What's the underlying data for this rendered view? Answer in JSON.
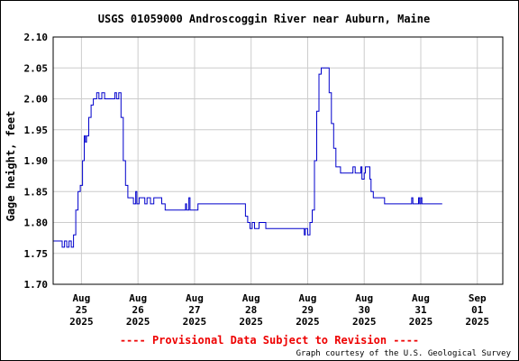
{
  "chart_data": {
    "type": "line",
    "title": "USGS 01059000 Androscoggin River near Auburn, Maine",
    "ylabel": "Gage height, feet",
    "xlabel": "",
    "ylim": [
      1.7,
      2.1
    ],
    "yticks": [
      "2.10",
      "2.05",
      "2.00",
      "1.95",
      "1.90",
      "1.85",
      "1.80",
      "1.75",
      "1.70"
    ],
    "xlim": [
      0,
      7.95
    ],
    "xticks": [
      {
        "x": 0.5,
        "lines": [
          "Aug",
          "25",
          "2025"
        ]
      },
      {
        "x": 1.5,
        "lines": [
          "Aug",
          "26",
          "2025"
        ]
      },
      {
        "x": 2.5,
        "lines": [
          "Aug",
          "27",
          "2025"
        ]
      },
      {
        "x": 3.5,
        "lines": [
          "Aug",
          "28",
          "2025"
        ]
      },
      {
        "x": 4.5,
        "lines": [
          "Aug",
          "29",
          "2025"
        ]
      },
      {
        "x": 5.5,
        "lines": [
          "Aug",
          "30",
          "2025"
        ]
      },
      {
        "x": 6.5,
        "lines": [
          "Aug",
          "31",
          "2025"
        ]
      },
      {
        "x": 7.5,
        "lines": [
          "Sep",
          "01",
          "2025"
        ]
      }
    ],
    "gridlines": true,
    "x_units": "days since Aug 25 00:00 (2025)",
    "series": [
      {
        "name": "",
        "color": "#0000cc",
        "points": [
          [
            0.0,
            1.77
          ],
          [
            0.14,
            1.77
          ],
          [
            0.16,
            1.76
          ],
          [
            0.2,
            1.77
          ],
          [
            0.24,
            1.76
          ],
          [
            0.28,
            1.77
          ],
          [
            0.32,
            1.76
          ],
          [
            0.36,
            1.78
          ],
          [
            0.4,
            1.82
          ],
          [
            0.44,
            1.85
          ],
          [
            0.48,
            1.86
          ],
          [
            0.52,
            1.9
          ],
          [
            0.55,
            1.94
          ],
          [
            0.57,
            1.93
          ],
          [
            0.59,
            1.94
          ],
          [
            0.63,
            1.97
          ],
          [
            0.67,
            1.99
          ],
          [
            0.71,
            2.0
          ],
          [
            0.75,
            2.0
          ],
          [
            0.77,
            2.01
          ],
          [
            0.81,
            2.0
          ],
          [
            0.86,
            2.01
          ],
          [
            0.91,
            2.0
          ],
          [
            1.0,
            2.0
          ],
          [
            1.05,
            2.0
          ],
          [
            1.09,
            2.01
          ],
          [
            1.12,
            2.0
          ],
          [
            1.16,
            2.01
          ],
          [
            1.2,
            1.97
          ],
          [
            1.24,
            1.9
          ],
          [
            1.28,
            1.86
          ],
          [
            1.32,
            1.84
          ],
          [
            1.38,
            1.84
          ],
          [
            1.42,
            1.83
          ],
          [
            1.46,
            1.85
          ],
          [
            1.48,
            1.83
          ],
          [
            1.52,
            1.84
          ],
          [
            1.58,
            1.84
          ],
          [
            1.62,
            1.83
          ],
          [
            1.66,
            1.84
          ],
          [
            1.72,
            1.83
          ],
          [
            1.78,
            1.84
          ],
          [
            1.88,
            1.84
          ],
          [
            1.92,
            1.83
          ],
          [
            1.98,
            1.82
          ],
          [
            2.2,
            1.82
          ],
          [
            2.3,
            1.82
          ],
          [
            2.34,
            1.83
          ],
          [
            2.36,
            1.82
          ],
          [
            2.4,
            1.84
          ],
          [
            2.42,
            1.82
          ],
          [
            2.5,
            1.82
          ],
          [
            2.56,
            1.83
          ],
          [
            2.7,
            1.83
          ],
          [
            2.9,
            1.83
          ],
          [
            3.1,
            1.83
          ],
          [
            3.2,
            1.83
          ],
          [
            3.3,
            1.83
          ],
          [
            3.36,
            1.83
          ],
          [
            3.4,
            1.81
          ],
          [
            3.44,
            1.8
          ],
          [
            3.48,
            1.79
          ],
          [
            3.52,
            1.8
          ],
          [
            3.56,
            1.79
          ],
          [
            3.6,
            1.79
          ],
          [
            3.64,
            1.8
          ],
          [
            3.72,
            1.8
          ],
          [
            3.76,
            1.79
          ],
          [
            4.0,
            1.79
          ],
          [
            4.3,
            1.79
          ],
          [
            4.42,
            1.79
          ],
          [
            4.44,
            1.78
          ],
          [
            4.46,
            1.79
          ],
          [
            4.5,
            1.78
          ],
          [
            4.54,
            1.8
          ],
          [
            4.58,
            1.82
          ],
          [
            4.62,
            1.9
          ],
          [
            4.66,
            1.98
          ],
          [
            4.7,
            2.04
          ],
          [
            4.74,
            2.05
          ],
          [
            4.84,
            2.05
          ],
          [
            4.88,
            2.01
          ],
          [
            4.92,
            1.96
          ],
          [
            4.96,
            1.92
          ],
          [
            5.0,
            1.89
          ],
          [
            5.04,
            1.89
          ],
          [
            5.08,
            1.88
          ],
          [
            5.22,
            1.88
          ],
          [
            5.26,
            1.88
          ],
          [
            5.3,
            1.89
          ],
          [
            5.34,
            1.88
          ],
          [
            5.4,
            1.88
          ],
          [
            5.44,
            1.89
          ],
          [
            5.46,
            1.87
          ],
          [
            5.5,
            1.88
          ],
          [
            5.52,
            1.89
          ],
          [
            5.56,
            1.89
          ],
          [
            5.6,
            1.87
          ],
          [
            5.62,
            1.85
          ],
          [
            5.66,
            1.84
          ],
          [
            5.82,
            1.84
          ],
          [
            5.86,
            1.83
          ],
          [
            6.2,
            1.83
          ],
          [
            6.3,
            1.83
          ],
          [
            6.34,
            1.84
          ],
          [
            6.36,
            1.83
          ],
          [
            6.44,
            1.83
          ],
          [
            6.46,
            1.84
          ],
          [
            6.48,
            1.83
          ],
          [
            6.5,
            1.84
          ],
          [
            6.52,
            1.83
          ],
          [
            6.7,
            1.83
          ],
          [
            6.88,
            1.83
          ]
        ]
      }
    ]
  },
  "footer": {
    "provisional": "---- Provisional Data Subject to Revision ----",
    "credit": "Graph courtesy of the U.S. Geological Survey"
  }
}
